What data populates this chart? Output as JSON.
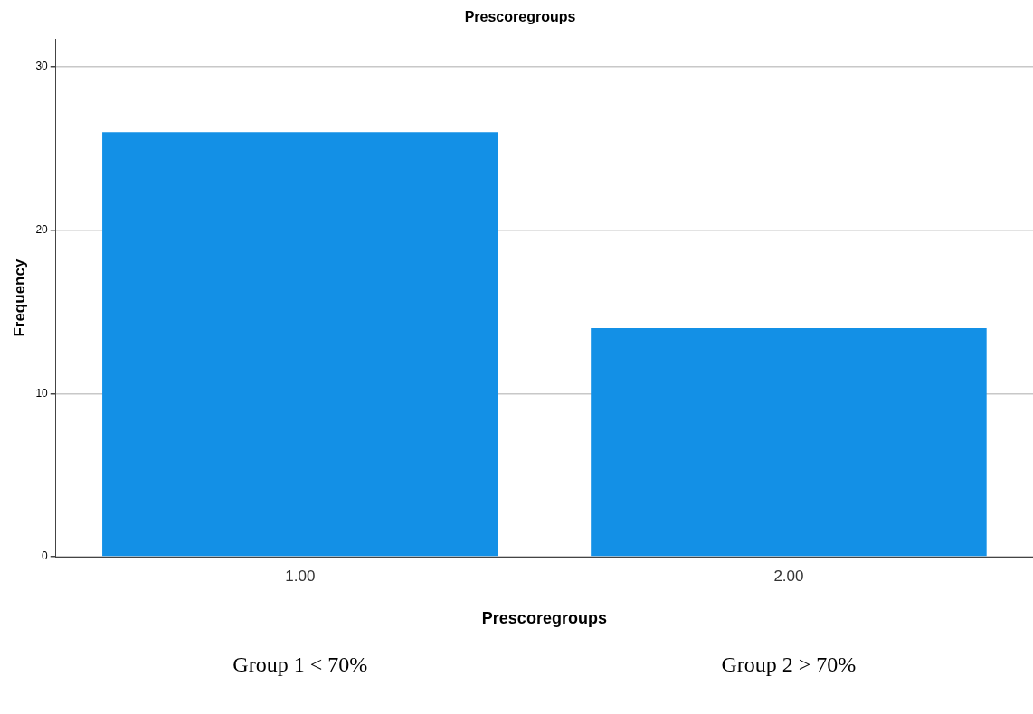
{
  "chart_data": {
    "type": "bar",
    "title": "Prescoregroups",
    "xlabel": "Prescoregroups",
    "ylabel": "Frequency",
    "categories": [
      "1.00",
      "2.00"
    ],
    "values": [
      26,
      14
    ],
    "color": "#1390e6",
    "ylim": [
      0,
      31.7
    ],
    "yticks": [
      0,
      10,
      20,
      30
    ],
    "grid": "y",
    "annotations": [
      "Group 1 < 70%",
      "Group 2 > 70%"
    ]
  }
}
